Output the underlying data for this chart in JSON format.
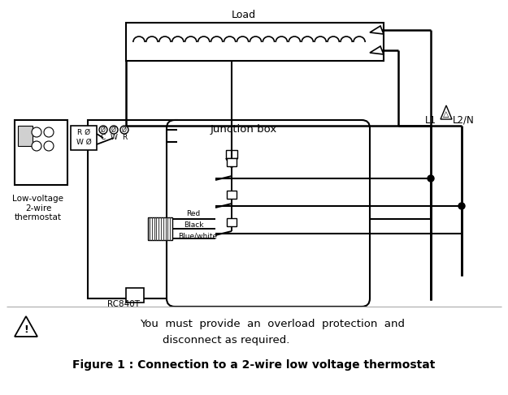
{
  "title": "Figure 1 : Connection to a 2-wire low voltage thermostat",
  "warning_line1": "You  must  provide  an  overload  protection  and",
  "warning_line2": "disconnect as required.",
  "load_label": "Load",
  "junction_box_label": "Junction box",
  "thermostat_label": "Low-voltage\n2-wire\nthermostat",
  "rc840t_label": "RC840T",
  "cwr_labels": [
    "C",
    "W",
    "R"
  ],
  "rw_labels": [
    "R Ø",
    "W Ø"
  ],
  "wire_labels": [
    "Red",
    "Black",
    "Blue/white"
  ],
  "l1_label": "L1",
  "l2n_label": "L2/N",
  "bg_color": "#ffffff",
  "line_color": "#000000"
}
